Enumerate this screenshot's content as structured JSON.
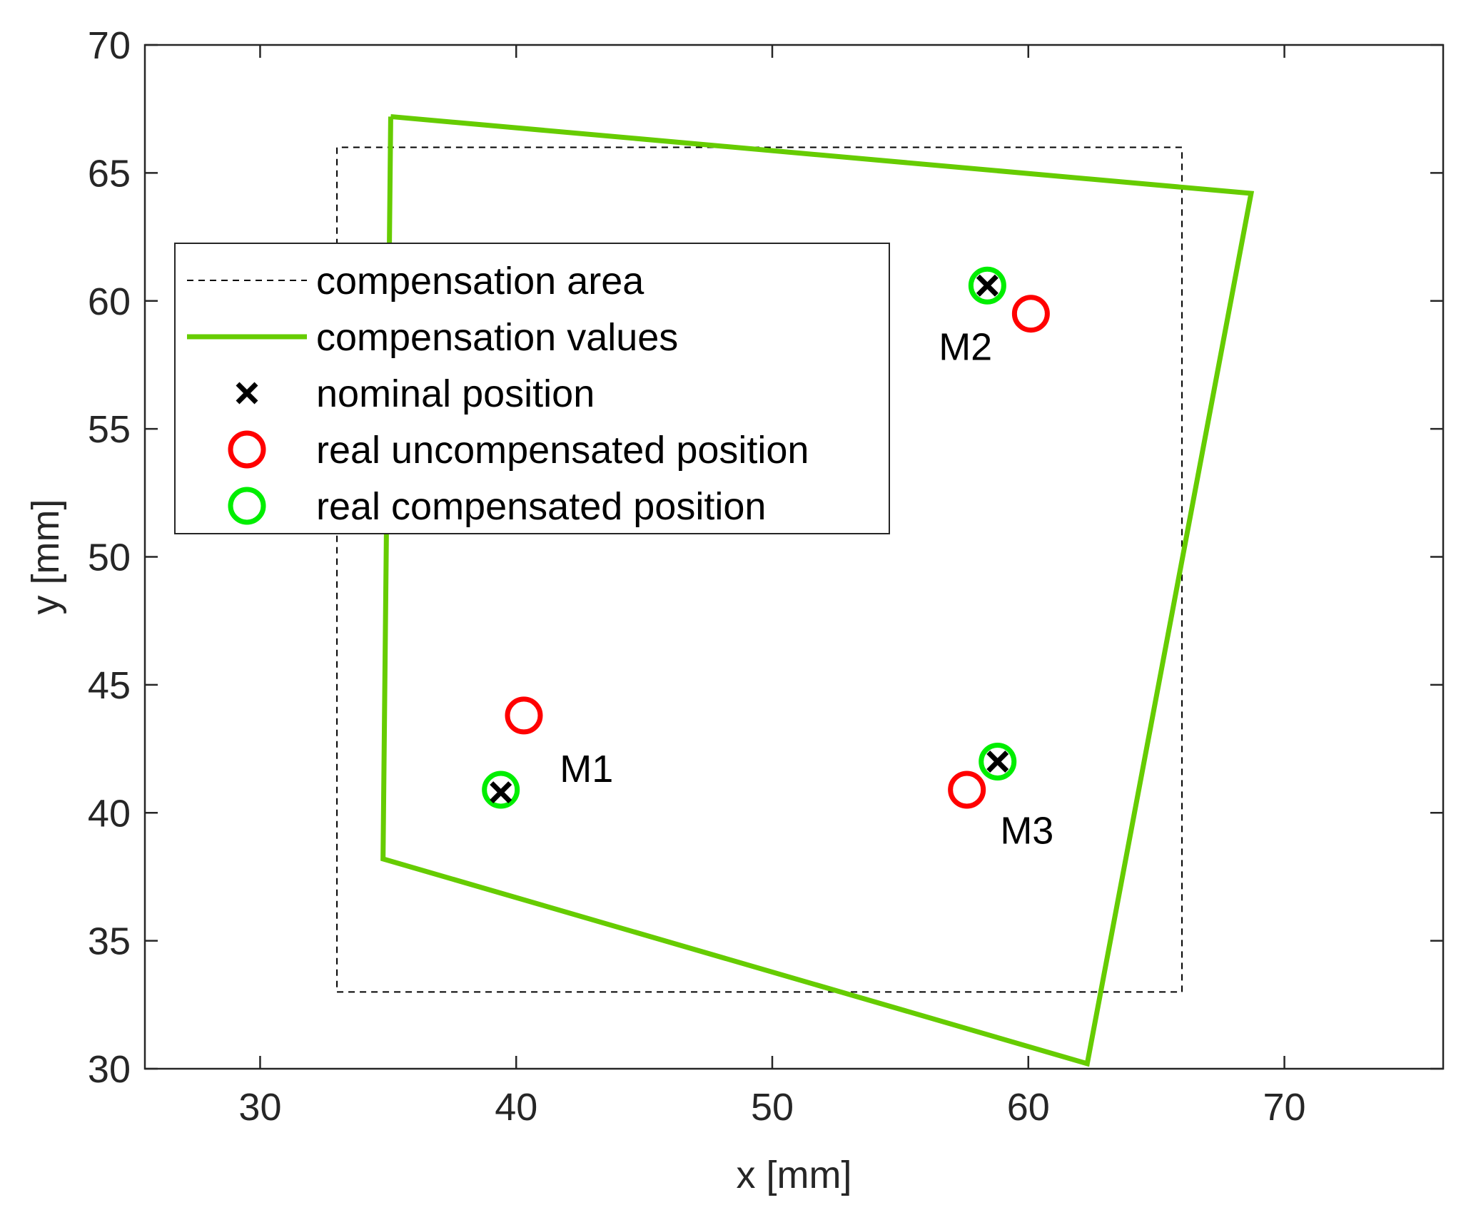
{
  "chart_data": {
    "type": "scatter",
    "title": "",
    "xlabel": "x [mm]",
    "ylabel": "y [mm]",
    "xlim": [
      25.5,
      76.2
    ],
    "ylim": [
      30,
      70
    ],
    "xticks": [
      30,
      40,
      50,
      60,
      70
    ],
    "yticks": [
      30,
      35,
      40,
      45,
      50,
      55,
      60,
      65,
      70
    ],
    "grid": false,
    "legend_position": "top-left",
    "colors": {
      "compensation_area": "#000000",
      "compensation_values": "#66cc00",
      "nominal": "#000000",
      "uncompensated": "#ff0000",
      "compensated": "#00ee00"
    },
    "series": [
      {
        "name": "compensation area",
        "kind": "dashed-line",
        "x": [
          33,
          66,
          66,
          33,
          33
        ],
        "y": [
          33,
          33,
          66,
          66,
          33
        ]
      },
      {
        "name": "compensation values",
        "kind": "solid-line",
        "x": [
          35.1,
          68.7,
          62.3,
          34.8,
          35.1
        ],
        "y": [
          67.2,
          64.2,
          30.2,
          38.2,
          67.2
        ]
      },
      {
        "name": "nominal position",
        "kind": "x-marker",
        "x": [
          39.4,
          58.4,
          58.8
        ],
        "y": [
          40.8,
          60.6,
          42.0
        ]
      },
      {
        "name": "real uncompensated position",
        "kind": "circle-marker",
        "x": [
          40.3,
          60.1,
          57.6
        ],
        "y": [
          43.8,
          59.5,
          40.9
        ]
      },
      {
        "name": "real compensated position",
        "kind": "circle-marker",
        "x": [
          39.4,
          58.4,
          58.8
        ],
        "y": [
          40.9,
          60.6,
          42.0
        ]
      }
    ],
    "annotations": [
      {
        "text": "M1",
        "x": 41.7,
        "y": 41.2
      },
      {
        "text": "M2",
        "x": 56.5,
        "y": 57.7
      },
      {
        "text": "M3",
        "x": 58.9,
        "y": 38.8
      }
    ]
  }
}
